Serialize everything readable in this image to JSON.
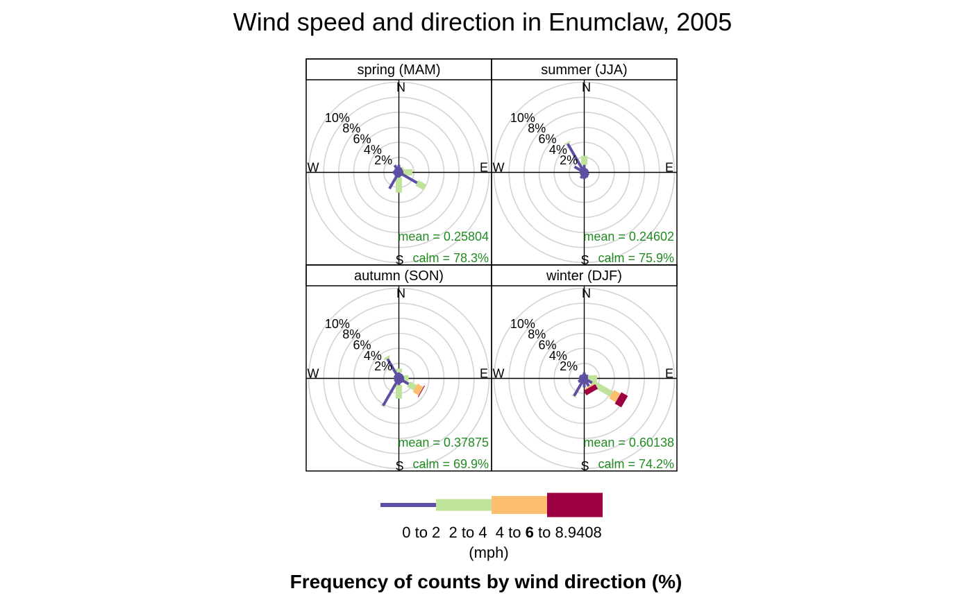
{
  "chart_data": {
    "type": "windrose",
    "title": "Wind speed and direction in Enumclaw, 2005",
    "xlabel": "Frequency of counts by wind direction (%)",
    "radial_ticks": [
      "2%",
      "4%",
      "6%",
      "8%",
      "10%"
    ],
    "radial_tick_values": [
      2,
      4,
      6,
      8,
      10
    ],
    "radial_max": 12,
    "compass_labels": {
      "n": "N",
      "e": "E",
      "s": "S",
      "w": "W"
    },
    "legend": {
      "position": "bottom",
      "bins": [
        "0 to 2",
        "2 to 4",
        "4 to 6",
        "6 to 8.9408"
      ],
      "label_parts": [
        {
          "text": "0 to 2",
          "bold": false
        },
        {
          "text": "  2 to 4",
          "bold": false
        },
        {
          "text": "  4 to ",
          "bold": false
        },
        {
          "text": "6",
          "bold": true
        },
        {
          "text": " to 8.9408",
          "bold": false
        }
      ],
      "unit": "(mph)",
      "colors": [
        "#5e4fa2",
        "#bfe39b",
        "#fdbf6f",
        "#9e0142"
      ]
    },
    "directions_deg": [
      0,
      30,
      60,
      90,
      120,
      150,
      180,
      210,
      240,
      270,
      300,
      330
    ],
    "panels": [
      {
        "name": "spring (MAM)",
        "stats_text": [
          "mean = 0.25804",
          "calm = 78.3%"
        ],
        "cumulative_pct": [
          [
            1.0,
            1.0,
            1.0,
            1.0
          ],
          [
            0.7,
            0.7,
            0.7,
            0.7
          ],
          [
            0.6,
            0.8,
            0.8,
            0.8
          ],
          [
            0.6,
            1.8,
            1.8,
            1.8
          ],
          [
            2.8,
            4.0,
            4.0,
            4.0
          ],
          [
            0.6,
            0.6,
            0.6,
            0.6
          ],
          [
            0.7,
            2.7,
            2.7,
            2.7
          ],
          [
            2.5,
            2.5,
            2.5,
            2.5
          ],
          [
            0.7,
            0.7,
            0.7,
            0.7
          ],
          [
            0.8,
            0.8,
            0.8,
            0.8
          ],
          [
            0.7,
            0.7,
            0.7,
            0.7
          ],
          [
            1.1,
            1.1,
            1.1,
            1.1
          ]
        ]
      },
      {
        "name": "summer (JJA)",
        "stats_text": [
          "mean = 0.24602",
          "calm = 75.9%"
        ],
        "cumulative_pct": [
          [
            1.0,
            2.2,
            2.2,
            2.2
          ],
          [
            0.6,
            0.6,
            0.6,
            0.6
          ],
          [
            0.6,
            0.6,
            0.6,
            0.6
          ],
          [
            0.5,
            0.5,
            0.5,
            0.5
          ],
          [
            0.7,
            0.7,
            0.7,
            0.7
          ],
          [
            0.8,
            0.8,
            0.8,
            0.8
          ],
          [
            0.9,
            0.9,
            0.9,
            0.9
          ],
          [
            0.9,
            0.9,
            0.9,
            0.9
          ],
          [
            0.6,
            0.6,
            0.6,
            0.6
          ],
          [
            0.6,
            0.6,
            0.6,
            0.6
          ],
          [
            1.5,
            1.5,
            1.5,
            1.5
          ],
          [
            4.4,
            4.6,
            4.6,
            4.6
          ]
        ]
      },
      {
        "name": "autumn (SON)",
        "stats_text": [
          "mean = 0.37875",
          "calm = 69.9%"
        ],
        "cumulative_pct": [
          [
            0.8,
            1.3,
            1.3,
            1.3
          ],
          [
            0.7,
            0.7,
            0.7,
            0.7
          ],
          [
            0.7,
            0.7,
            0.7,
            0.7
          ],
          [
            0.7,
            1.3,
            1.3,
            1.3
          ],
          [
            1.5,
            2.5,
            3.4,
            3.5
          ],
          [
            0.7,
            0.7,
            0.7,
            0.7
          ],
          [
            0.9,
            2.7,
            2.7,
            2.7
          ],
          [
            4.2,
            4.3,
            4.3,
            4.3
          ],
          [
            0.7,
            0.7,
            0.7,
            0.7
          ],
          [
            0.6,
            0.6,
            0.6,
            0.6
          ],
          [
            0.7,
            0.7,
            0.7,
            0.7
          ],
          [
            3.0,
            3.3,
            3.3,
            3.3
          ]
        ]
      },
      {
        "name": "winter (DJF)",
        "stats_text": [
          "mean = 0.60138",
          "calm = 74.2%"
        ],
        "cumulative_pct": [
          [
            0.8,
            0.8,
            0.8,
            0.8
          ],
          [
            0.6,
            0.6,
            0.6,
            0.6
          ],
          [
            0.7,
            0.7,
            0.7,
            0.7
          ],
          [
            0.5,
            1.7,
            1.7,
            1.7
          ],
          [
            1.2,
            4.2,
            5.2,
            6.2
          ],
          [
            1.2,
            1.2,
            1.4,
            2.1
          ],
          [
            1.2,
            1.2,
            1.2,
            1.2
          ],
          [
            2.7,
            2.8,
            2.8,
            2.8
          ],
          [
            0.9,
            0.9,
            0.9,
            0.9
          ],
          [
            0.7,
            0.7,
            0.7,
            0.7
          ],
          [
            0.7,
            0.7,
            0.7,
            0.7
          ],
          [
            0.6,
            0.6,
            0.6,
            0.6
          ]
        ]
      }
    ]
  }
}
